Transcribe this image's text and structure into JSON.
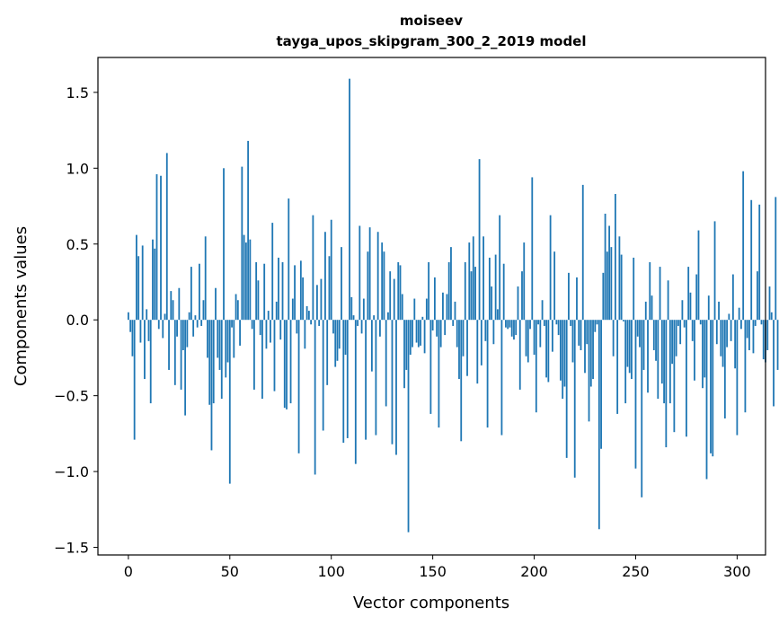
{
  "chart_data": {
    "type": "bar",
    "title": "moiseev",
    "subtitle": "tayga_upos_skipgram_300_2_2019 model",
    "xlabel": "Vector components",
    "ylabel": "Components values",
    "xlim": [
      -15,
      314
    ],
    "ylim": [
      -1.55,
      1.73
    ],
    "xticks": [
      0,
      50,
      100,
      150,
      200,
      250,
      300
    ],
    "yticks": [
      -1.5,
      -1.0,
      -0.5,
      0.0,
      0.5,
      1.0,
      1.5
    ],
    "ytick_labels": [
      "−1.5",
      "−1.0",
      "−0.5",
      "0.0",
      "0.5",
      "1.0",
      "1.5"
    ],
    "bar_color": "#1f77b4",
    "grid": false,
    "values": [
      0.05,
      -0.08,
      -0.24,
      -0.79,
      0.56,
      0.42,
      -0.15,
      0.49,
      -0.39,
      0.07,
      -0.14,
      -0.55,
      0.53,
      0.47,
      0.96,
      -0.06,
      0.95,
      -0.12,
      0.04,
      1.1,
      -0.33,
      0.19,
      0.13,
      -0.43,
      -0.11,
      0.21,
      -0.46,
      -0.2,
      -0.63,
      -0.18,
      0.05,
      0.35,
      -0.11,
      0.03,
      -0.05,
      0.37,
      -0.04,
      0.13,
      0.55,
      -0.25,
      -0.56,
      -0.86,
      -0.55,
      0.21,
      -0.25,
      -0.33,
      -0.52,
      1.0,
      -0.38,
      -0.28,
      -1.08,
      -0.05,
      -0.25,
      0.17,
      0.13,
      -0.17,
      1.01,
      0.56,
      0.51,
      1.18,
      0.53,
      -0.06,
      -0.46,
      0.38,
      0.26,
      -0.1,
      -0.52,
      0.37,
      -0.19,
      0.06,
      -0.15,
      0.64,
      -0.47,
      0.12,
      0.41,
      -0.13,
      0.38,
      -0.58,
      -0.59,
      0.8,
      -0.55,
      0.14,
      0.36,
      -0.09,
      -0.88,
      0.39,
      0.28,
      -0.19,
      0.09,
      0.06,
      -0.03,
      0.69,
      -1.02,
      0.23,
      -0.04,
      0.27,
      -0.73,
      0.58,
      -0.43,
      0.42,
      0.66,
      -0.09,
      -0.31,
      -0.27,
      -0.19,
      0.48,
      -0.81,
      -0.23,
      -0.78,
      1.59,
      0.15,
      0.03,
      -0.95,
      -0.04,
      0.62,
      -0.09,
      0.14,
      -0.79,
      0.45,
      0.61,
      -0.34,
      0.03,
      -0.76,
      0.58,
      -0.11,
      0.51,
      0.45,
      -0.57,
      0.05,
      0.32,
      -0.82,
      0.27,
      -0.89,
      0.38,
      0.36,
      0.17,
      -0.45,
      -0.33,
      -1.4,
      -0.23,
      -0.18,
      0.14,
      -0.15,
      -0.18,
      -0.17,
      0.02,
      -0.22,
      0.14,
      0.38,
      -0.62,
      -0.07,
      0.28,
      -0.11,
      -0.71,
      -0.18,
      0.18,
      -0.1,
      0.17,
      0.38,
      0.48,
      -0.04,
      0.12,
      -0.18,
      -0.39,
      -0.8,
      -0.24,
      0.38,
      -0.37,
      0.51,
      0.32,
      0.55,
      0.35,
      -0.42,
      1.06,
      -0.3,
      0.55,
      -0.14,
      -0.71,
      0.41,
      0.22,
      -0.16,
      0.43,
      0.07,
      0.69,
      -0.76,
      0.37,
      -0.05,
      -0.06,
      -0.05,
      -0.11,
      -0.13,
      -0.1,
      0.22,
      -0.46,
      0.32,
      0.51,
      -0.24,
      -0.28,
      -0.06,
      0.94,
      -0.23,
      -0.61,
      -0.03,
      -0.18,
      0.13,
      -0.04,
      -0.38,
      -0.41,
      0.69,
      -0.21,
      0.45,
      -0.03,
      -0.1,
      -0.4,
      -0.52,
      -0.44,
      -0.91,
      0.31,
      -0.04,
      -0.28,
      -1.04,
      0.28,
      -0.17,
      -0.2,
      0.89,
      -0.35,
      -0.16,
      -0.67,
      -0.44,
      -0.39,
      -0.08,
      -0.03,
      -1.38,
      -0.85,
      0.31,
      0.7,
      0.45,
      0.62,
      0.48,
      -0.24,
      0.83,
      -0.62,
      0.55,
      0.43,
      -0.01,
      -0.55,
      -0.31,
      -0.35,
      -0.39,
      0.41,
      -0.98,
      -0.11,
      -0.18,
      -1.17,
      -0.33,
      0.12,
      -0.48,
      0.38,
      0.16,
      -0.2,
      -0.27,
      -0.52,
      0.35,
      -0.42,
      -0.55,
      -0.84,
      0.26,
      -0.55,
      -0.29,
      -0.74,
      -0.24,
      -0.04,
      -0.16,
      0.13,
      -0.05,
      -0.77,
      0.35,
      0.18,
      -0.14,
      -0.4,
      0.3,
      0.59,
      -0.03,
      -0.45,
      -0.38,
      -1.05,
      0.16,
      -0.88,
      -0.9,
      0.65,
      -0.16,
      0.12,
      -0.24,
      -0.31,
      -0.65,
      -0.18,
      0.04,
      -0.14,
      0.3,
      -0.32,
      -0.76,
      0.08,
      -0.06,
      0.98,
      -0.61,
      -0.12,
      -0.2,
      0.79,
      -0.22,
      -0.04,
      0.32,
      0.76,
      -0.03,
      -0.26,
      -0.28,
      -0.2,
      0.22,
      0.05,
      -0.57,
      0.81,
      -0.33
    ]
  }
}
